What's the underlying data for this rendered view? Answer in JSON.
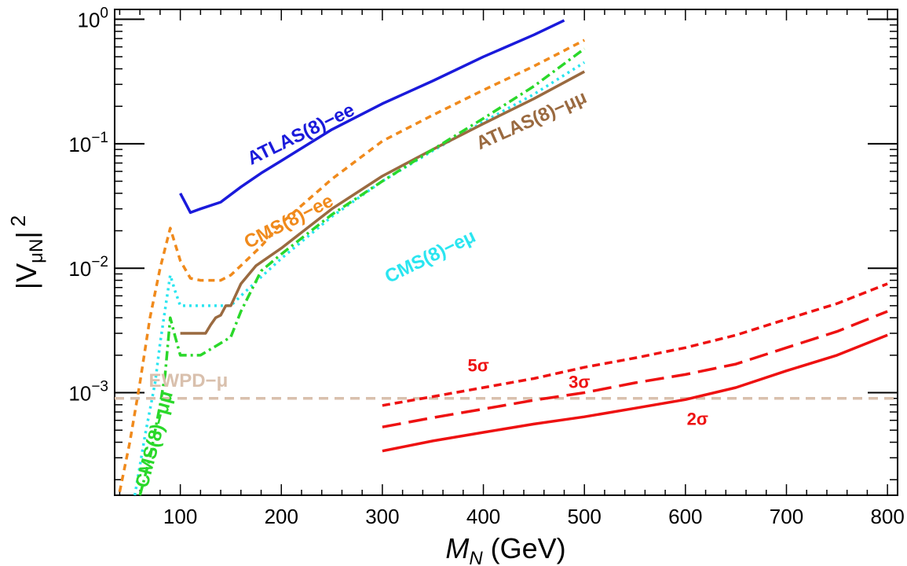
{
  "chart_data": {
    "type": "line",
    "title": "",
    "xlabel": {
      "main": "M",
      "sub": "N",
      "unit": "(GeV)"
    },
    "ylabel": {
      "main": "|V",
      "sub": "μN",
      "close": "|",
      "sup": "2"
    },
    "xlim": [
      35,
      810
    ],
    "ylim": [
      0.00015,
      1.2
    ],
    "yscale": "log",
    "x_ticks": [
      {
        "v": 100,
        "label": "100"
      },
      {
        "v": 200,
        "label": "200"
      },
      {
        "v": 300,
        "label": "300"
      },
      {
        "v": 400,
        "label": "400"
      },
      {
        "v": 500,
        "label": "500"
      },
      {
        "v": 600,
        "label": "600"
      },
      {
        "v": 700,
        "label": "700"
      },
      {
        "v": 800,
        "label": "800"
      }
    ],
    "y_ticks": [
      {
        "v": 1,
        "base": "10",
        "exp": "0"
      },
      {
        "v": 0.1,
        "base": "10",
        "exp": "−1"
      },
      {
        "v": 0.01,
        "base": "10",
        "exp": "−2"
      },
      {
        "v": 0.001,
        "base": "10",
        "exp": "−3"
      }
    ],
    "grid": false,
    "series": [
      {
        "name": "ATLAS(8)−ee",
        "color": "#1a1adb",
        "dash": "solid",
        "x": [
          100,
          110,
          120,
          140,
          160,
          180,
          200,
          250,
          300,
          350,
          400,
          450,
          480
        ],
        "y": [
          0.04,
          0.028,
          0.03,
          0.034,
          0.045,
          0.058,
          0.073,
          0.13,
          0.21,
          0.32,
          0.5,
          0.75,
          0.98
        ]
      },
      {
        "name": "CMS(8)−ee",
        "color": "#f08a1c",
        "dash": "8,6",
        "x": [
          40,
          50,
          60,
          70,
          80,
          90,
          100,
          110,
          120,
          140,
          150,
          160,
          180,
          200,
          250,
          300,
          350,
          400,
          450,
          500
        ],
        "y": [
          0.00016,
          0.0004,
          0.0012,
          0.004,
          0.01,
          0.021,
          0.0115,
          0.0083,
          0.008,
          0.008,
          0.0088,
          0.0105,
          0.015,
          0.023,
          0.052,
          0.105,
          0.17,
          0.27,
          0.42,
          0.68
        ]
      },
      {
        "name": "CMS(8)−eμ",
        "color": "#2ae5f0",
        "dash": "3,5",
        "x": [
          55,
          65,
          75,
          80,
          90,
          95,
          100,
          110,
          120,
          140,
          150,
          160,
          180,
          200,
          250,
          300,
          350,
          400,
          450,
          500
        ],
        "y": [
          0.00015,
          0.00045,
          0.0012,
          0.0025,
          0.0088,
          0.0065,
          0.005,
          0.005,
          0.005,
          0.005,
          0.005,
          0.006,
          0.0085,
          0.012,
          0.026,
          0.05,
          0.088,
          0.15,
          0.25,
          0.45
        ]
      },
      {
        "name": "ATLAS(8)−μμ",
        "color": "#9a6a40",
        "dash": "solid",
        "x": [
          100,
          125,
          130,
          135,
          140,
          145,
          150,
          160,
          175,
          200,
          250,
          300,
          350,
          400,
          450,
          500
        ],
        "y": [
          0.003,
          0.003,
          0.0035,
          0.004,
          0.0042,
          0.005,
          0.005,
          0.0075,
          0.0105,
          0.0145,
          0.03,
          0.055,
          0.09,
          0.145,
          0.23,
          0.38
        ]
      },
      {
        "name": "CMS(8)−μμ",
        "color": "#2ad82a",
        "dash": "12,5,3,5",
        "x": [
          60,
          70,
          80,
          85,
          90,
          95,
          100,
          110,
          120,
          140,
          150,
          160,
          180,
          200,
          250,
          300,
          350,
          400,
          450,
          500
        ],
        "y": [
          0.00015,
          0.0003,
          0.0008,
          0.0014,
          0.004,
          0.0028,
          0.002,
          0.002,
          0.002,
          0.0025,
          0.0028,
          0.0045,
          0.0095,
          0.013,
          0.027,
          0.05,
          0.09,
          0.16,
          0.29,
          0.58
        ]
      },
      {
        "name": "EWPD−μ",
        "color": "#d9c0ad",
        "dash": "12,8",
        "x": [
          35,
          810
        ],
        "y": [
          0.0009,
          0.0009
        ]
      },
      {
        "name": "5σ",
        "color": "#ee1111",
        "dash": "10,6",
        "x": [
          300,
          350,
          400,
          450,
          500,
          550,
          600,
          650,
          700,
          750,
          800
        ],
        "y": [
          0.00079,
          0.00093,
          0.0011,
          0.0013,
          0.0016,
          0.0019,
          0.0023,
          0.0029,
          0.0039,
          0.0052,
          0.0075
        ]
      },
      {
        "name": "3σ",
        "color": "#ee1111",
        "dash": "24,10",
        "x": [
          300,
          350,
          400,
          450,
          500,
          550,
          600,
          650,
          700,
          750,
          800
        ],
        "y": [
          0.00053,
          0.00063,
          0.00074,
          0.00087,
          0.001,
          0.0012,
          0.0014,
          0.0017,
          0.0023,
          0.0031,
          0.0045
        ]
      },
      {
        "name": "2σ",
        "color": "#ee1111",
        "dash": "solid",
        "x": [
          300,
          350,
          400,
          450,
          500,
          550,
          600,
          650,
          700,
          750,
          800
        ],
        "y": [
          0.00034,
          0.00041,
          0.00048,
          0.00056,
          0.00064,
          0.00075,
          0.00088,
          0.0011,
          0.0015,
          0.002,
          0.0029
        ]
      }
    ],
    "annotations": [
      {
        "text": "ATLAS(8)−ee",
        "color": "#1a1adb",
        "x": 222,
        "y": 0.108,
        "rotate": -26
      },
      {
        "text": "CMS(8)−ee",
        "color": "#f08a1c",
        "x": 210,
        "y": 0.0215,
        "rotate": -27
      },
      {
        "text": "CMS(8)−eμ",
        "color": "#2ae5f0",
        "x": 350,
        "y": 0.01125,
        "rotate": -26
      },
      {
        "text": "ATLAS(8)−μμ",
        "color": "#9a6a40",
        "x": 450,
        "y": 0.1395,
        "rotate": -24
      },
      {
        "text": "CMS(8)−μμ",
        "color": "#2ad82a",
        "x": 80,
        "y": 0.00041,
        "rotate": -75
      },
      {
        "text": "EWPD−μ",
        "color": "#d9c0ad",
        "x": 108,
        "y": 0.00112,
        "rotate": 0
      },
      {
        "text": "5σ",
        "color": "#ee1111",
        "x": 395,
        "y": 0.00148,
        "rotate": 0
      },
      {
        "text": "3σ",
        "color": "#ee1111",
        "x": 495,
        "y": 0.00109,
        "rotate": 0
      },
      {
        "text": "2σ",
        "color": "#ee1111",
        "x": 612,
        "y": 0.00055,
        "rotate": 0
      }
    ]
  }
}
